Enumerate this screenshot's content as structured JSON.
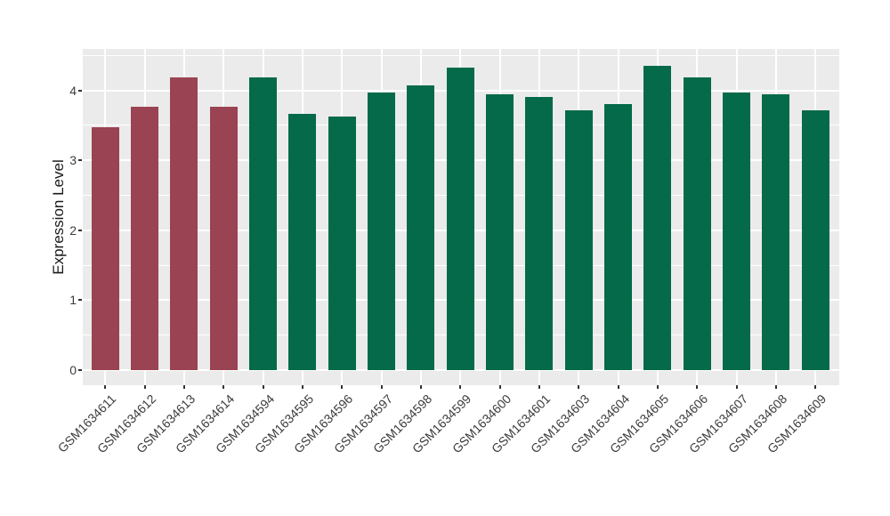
{
  "chart_data": {
    "type": "bar",
    "title": "",
    "xlabel": "",
    "ylabel": "Expression Level",
    "ylim": [
      0,
      4.65
    ],
    "yticks": [
      0,
      1,
      2,
      3,
      4
    ],
    "yticks_minor": [
      0.5,
      1.5,
      2.5,
      3.5,
      4.5
    ],
    "grid": "white major and minor horizontal lines plus vertical lines at each bar center, drawn on gray panel behind bars",
    "legend": "none",
    "categories": [
      "GSM1634611",
      "GSM1634612",
      "GSM1634613",
      "GSM1634614",
      "GSM1634594",
      "GSM1634595",
      "GSM1634596",
      "GSM1634597",
      "GSM1634598",
      "GSM1634599",
      "GSM1634600",
      "GSM1634601",
      "GSM1634603",
      "GSM1634604",
      "GSM1634605",
      "GSM1634606",
      "GSM1634607",
      "GSM1634608",
      "GSM1634609"
    ],
    "values": [
      3.47,
      3.77,
      4.18,
      3.77,
      4.18,
      3.67,
      3.62,
      3.97,
      4.07,
      4.33,
      3.94,
      3.91,
      3.72,
      3.81,
      4.35,
      4.18,
      3.97,
      3.94,
      3.72
    ],
    "groups": [
      {
        "name": "group-red",
        "color": "#9A4352",
        "categories": [
          "GSM1634611",
          "GSM1634612",
          "GSM1634613",
          "GSM1634614"
        ]
      },
      {
        "name": "group-green",
        "color": "#046A49",
        "categories": [
          "GSM1634594",
          "GSM1634595",
          "GSM1634596",
          "GSM1634597",
          "GSM1634598",
          "GSM1634599",
          "GSM1634600",
          "GSM1634601",
          "GSM1634603",
          "GSM1634604",
          "GSM1634605",
          "GSM1634606",
          "GSM1634607",
          "GSM1634608",
          "GSM1634609"
        ]
      }
    ],
    "colors": {
      "panel_background": "#EBEBEB",
      "gridline": "#FFFFFF",
      "tick_mark": "#333333",
      "tick_text": "#3C3C3C",
      "axis_title_text": "#1A1A1A",
      "figure_background": "#FFFFFF"
    }
  }
}
